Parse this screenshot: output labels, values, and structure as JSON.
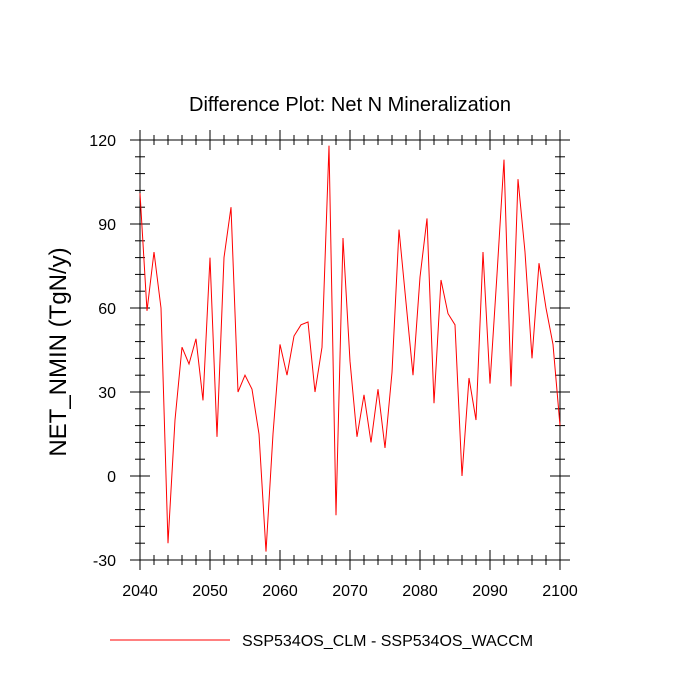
{
  "chart_data": {
    "type": "line",
    "title": "Difference Plot: Net N Mineralization",
    "xlabel": "",
    "ylabel": "NET_NMIN  (TgN/y)",
    "xlim": [
      2040,
      2100
    ],
    "ylim": [
      -30,
      120
    ],
    "xticks": [
      2040,
      2050,
      2060,
      2070,
      2080,
      2090,
      2100
    ],
    "yticks": [
      -30,
      0,
      30,
      60,
      90,
      120
    ],
    "grid": false,
    "legend_position": "bottom",
    "series": [
      {
        "name": "SSP534OS_CLM - SSP534OS_WACCM",
        "color": "#ff0000",
        "x": [
          2040,
          2041,
          2042,
          2043,
          2044,
          2045,
          2046,
          2047,
          2048,
          2049,
          2050,
          2051,
          2052,
          2053,
          2054,
          2055,
          2056,
          2057,
          2058,
          2059,
          2060,
          2061,
          2062,
          2063,
          2064,
          2065,
          2066,
          2067,
          2068,
          2069,
          2070,
          2071,
          2072,
          2073,
          2074,
          2075,
          2076,
          2077,
          2078,
          2079,
          2080,
          2081,
          2082,
          2083,
          2084,
          2085,
          2086,
          2087,
          2088,
          2089,
          2090,
          2091,
          2092,
          2093,
          2094,
          2095,
          2096,
          2097,
          2098,
          2099,
          2100
        ],
        "values": [
          101,
          59,
          80,
          60,
          -24,
          20,
          46,
          40,
          49,
          27,
          78,
          14,
          78,
          96,
          30,
          36,
          31,
          15,
          -27,
          15,
          47,
          36,
          50,
          54,
          55,
          30,
          46,
          118,
          -14,
          85,
          41,
          14,
          29,
          12,
          31,
          10,
          37,
          88,
          62,
          36,
          71,
          92,
          26,
          70,
          58,
          54,
          0,
          35,
          20,
          80,
          33,
          72,
          113,
          32,
          106,
          80,
          42,
          76,
          60,
          47,
          18
        ]
      }
    ]
  }
}
